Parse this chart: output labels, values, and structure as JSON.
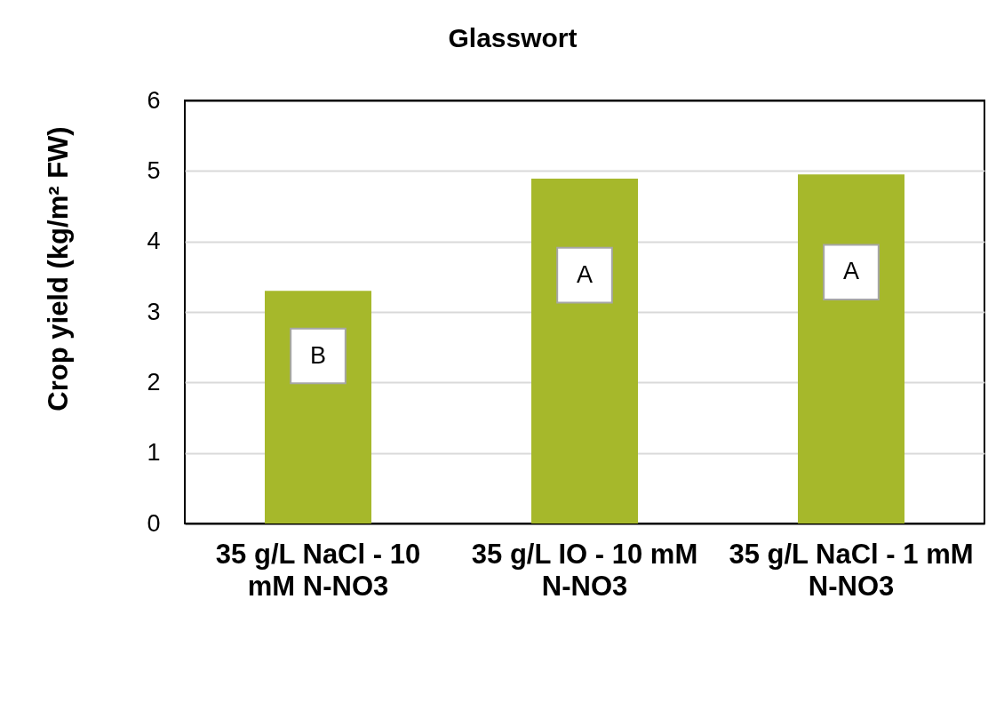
{
  "chart_data": {
    "type": "bar",
    "title": "Glasswort",
    "ylabel": "Crop yield (kg/m² FW)",
    "categories": [
      "35 g/L NaCl - 10 mM N-NO3",
      "35 g/L IO - 10 mM N-NO3",
      "35 g/L NaCl - 1 mM N-NO3"
    ],
    "values": [
      3.3,
      4.89,
      4.95
    ],
    "color": "#a6b82b",
    "ylim": [
      0,
      6
    ],
    "yticks": [
      0,
      1,
      2,
      3,
      4,
      5,
      6
    ],
    "grid": "y",
    "annotations": [
      "B",
      "A",
      "A"
    ]
  }
}
